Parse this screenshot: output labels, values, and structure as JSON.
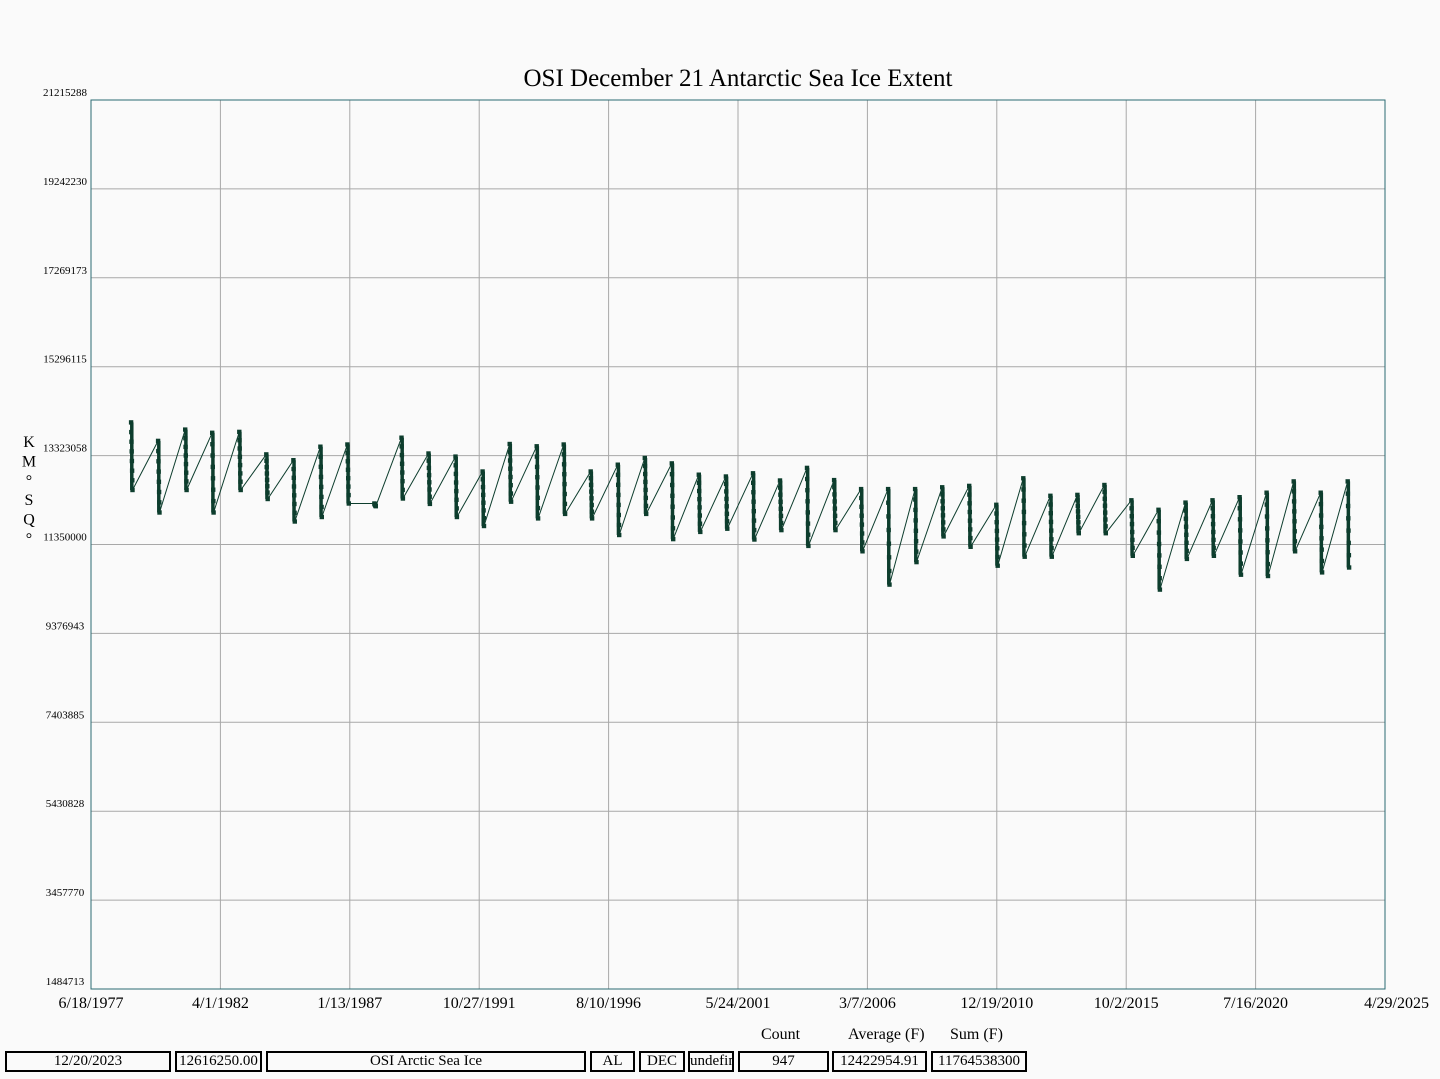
{
  "chart_data": {
    "type": "line",
    "title": "OSI December 21 Antarctic Sea Ice Extent",
    "ylabel_chars": [
      "K",
      "M",
      "°",
      "S",
      "Q",
      "°"
    ],
    "ylim": [
      1484713,
      21215288
    ],
    "yticks": [
      "21215288",
      "19242230",
      "17269173",
      "15296115",
      "13323058",
      "11350000",
      "9376943",
      "7403885",
      "5430828",
      "3457770",
      "1484713"
    ],
    "xlim": [
      "1977-06-18",
      "2025-04-29"
    ],
    "xticks": [
      "6/18/1977",
      "4/1/1982",
      "1/13/1987",
      "10/27/1991",
      "8/10/1996",
      "5/24/2001",
      "3/7/2006",
      "12/19/2010",
      "10/2/2015",
      "7/16/2020",
      "4/29/2025"
    ],
    "grid": true,
    "line_color": "#0d3d2d",
    "series": [
      {
        "segments": [
          {
            "year": 1978,
            "top": 14060000,
            "bottom": 12560000
          },
          {
            "year": 1979,
            "top": 13650000,
            "bottom": 12060000
          },
          {
            "year": 1980,
            "top": 13900000,
            "bottom": 12560000
          },
          {
            "year": 1981,
            "top": 13830000,
            "bottom": 12060000
          },
          {
            "year": 1982,
            "top": 13850000,
            "bottom": 12560000
          },
          {
            "year": 1983,
            "top": 13350000,
            "bottom": 12360000
          },
          {
            "year": 1984,
            "top": 13220000,
            "bottom": 11860000
          },
          {
            "year": 1985,
            "top": 13520000,
            "bottom": 11960000
          },
          {
            "year": 1986,
            "top": 13570000,
            "bottom": 12260000
          },
          {
            "year": 1987,
            "top": 12260000,
            "bottom": 12200000
          },
          {
            "year": 1988,
            "top": 13720000,
            "bottom": 12370000
          },
          {
            "year": 1989,
            "top": 13370000,
            "bottom": 12250000
          },
          {
            "year": 1990,
            "top": 13300000,
            "bottom": 11960000
          },
          {
            "year": 1991,
            "top": 12970000,
            "bottom": 11760000
          },
          {
            "year": 1992,
            "top": 13580000,
            "bottom": 12300000
          },
          {
            "year": 1993,
            "top": 13530000,
            "bottom": 11930000
          },
          {
            "year": 1994,
            "top": 13570000,
            "bottom": 12030000
          },
          {
            "year": 1995,
            "top": 12970000,
            "bottom": 11930000
          },
          {
            "year": 1996,
            "top": 13120000,
            "bottom": 11560000
          },
          {
            "year": 1997,
            "top": 13270000,
            "bottom": 12030000
          },
          {
            "year": 1998,
            "top": 13150000,
            "bottom": 11470000
          },
          {
            "year": 1999,
            "top": 12900000,
            "bottom": 11630000
          },
          {
            "year": 2000,
            "top": 12860000,
            "bottom": 11700000
          },
          {
            "year": 2001,
            "top": 12930000,
            "bottom": 11460000
          },
          {
            "year": 2002,
            "top": 12770000,
            "bottom": 11670000
          },
          {
            "year": 2003,
            "top": 13050000,
            "bottom": 11320000
          },
          {
            "year": 2004,
            "top": 12780000,
            "bottom": 11670000
          },
          {
            "year": 2005,
            "top": 12580000,
            "bottom": 11200000
          },
          {
            "year": 2006,
            "top": 12580000,
            "bottom": 10460000
          },
          {
            "year": 2007,
            "top": 12580000,
            "bottom": 10960000
          },
          {
            "year": 2008,
            "top": 12620000,
            "bottom": 11530000
          },
          {
            "year": 2009,
            "top": 12650000,
            "bottom": 11300000
          },
          {
            "year": 2010,
            "top": 12230000,
            "bottom": 10880000
          },
          {
            "year": 2011,
            "top": 12820000,
            "bottom": 11080000
          },
          {
            "year": 2012,
            "top": 12430000,
            "bottom": 11080000
          },
          {
            "year": 2013,
            "top": 12450000,
            "bottom": 11600000
          },
          {
            "year": 2014,
            "top": 12670000,
            "bottom": 11600000
          },
          {
            "year": 2015,
            "top": 12330000,
            "bottom": 11100000
          },
          {
            "year": 2016,
            "top": 12120000,
            "bottom": 10350000
          },
          {
            "year": 2017,
            "top": 12280000,
            "bottom": 11030000
          },
          {
            "year": 2018,
            "top": 12330000,
            "bottom": 11100000
          },
          {
            "year": 2019,
            "top": 12400000,
            "bottom": 10680000
          },
          {
            "year": 2020,
            "top": 12500000,
            "bottom": 10650000
          },
          {
            "year": 2021,
            "top": 12750000,
            "bottom": 11200000
          },
          {
            "year": 2022,
            "top": 12500000,
            "bottom": 10730000
          },
          {
            "year": 2023,
            "top": 12750000,
            "bottom": 10840000
          }
        ]
      }
    ]
  },
  "stats": {
    "count_label": "Count",
    "average_label": "Average (F)",
    "sum_label": "Sum (F)"
  },
  "footer": {
    "date": "12/20/2023",
    "value": "12616250.00",
    "dataset": "OSI Arctic Sea Ice",
    "region": "AL",
    "month": "DEC",
    "extra": "undefined",
    "count": "947",
    "average": "12422954.91",
    "sum": "11764538300"
  }
}
